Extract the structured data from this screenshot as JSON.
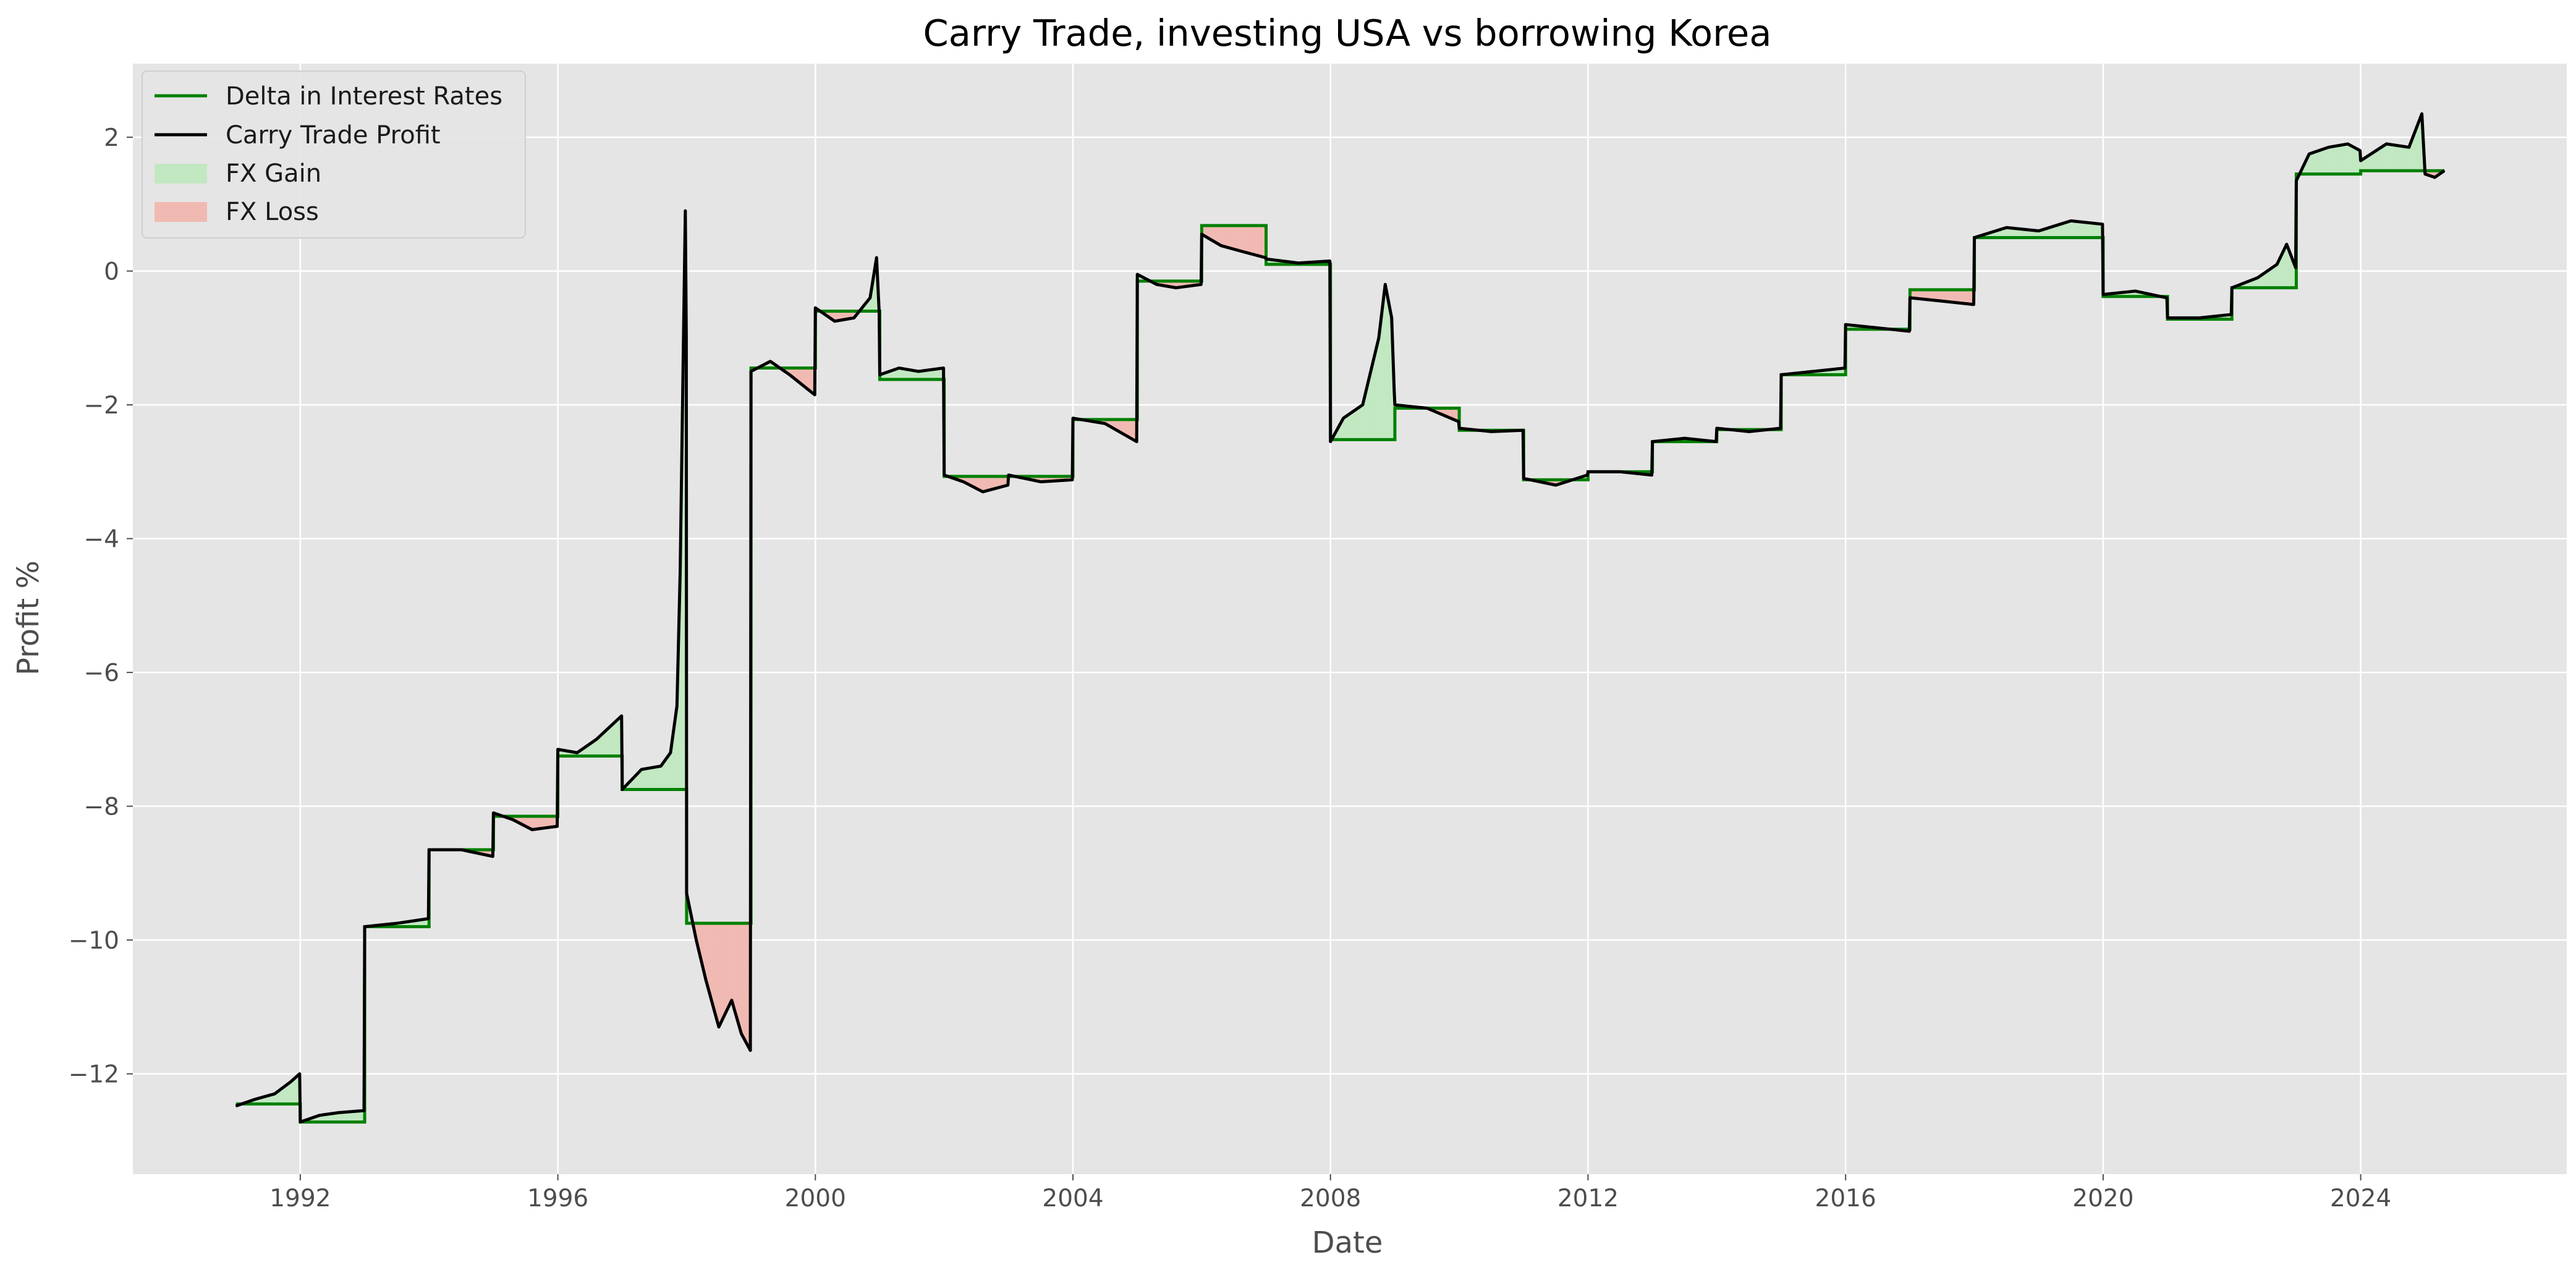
{
  "chart_data": {
    "type": "line",
    "title": "Carry Trade, investing USA vs borrowing Korea",
    "xlabel": "Date",
    "ylabel": "Profit %",
    "xlim": [
      1989.4,
      2027.2
    ],
    "ylim": [
      -13.5,
      3.1
    ],
    "x_ticks": [
      {
        "value": 1992,
        "label": "1992"
      },
      {
        "value": 1996,
        "label": "1996"
      },
      {
        "value": 2000,
        "label": "2000"
      },
      {
        "value": 2004,
        "label": "2004"
      },
      {
        "value": 2008,
        "label": "2008"
      },
      {
        "value": 2012,
        "label": "2012"
      },
      {
        "value": 2016,
        "label": "2016"
      },
      {
        "value": 2020,
        "label": "2020"
      },
      {
        "value": 2024,
        "label": "2024"
      }
    ],
    "y_ticks": [
      {
        "value": -12,
        "label": "−12"
      },
      {
        "value": -10,
        "label": "−10"
      },
      {
        "value": -8,
        "label": "−8"
      },
      {
        "value": -6,
        "label": "−6"
      },
      {
        "value": -4,
        "label": "−4"
      },
      {
        "value": -2,
        "label": "−2"
      },
      {
        "value": 0,
        "label": "0"
      },
      {
        "value": 2,
        "label": "2"
      }
    ],
    "grid": true,
    "legend_position": "upper-left",
    "colors": {
      "background": "#e5e5e5",
      "grid": "#ffffff",
      "delta": "#008000",
      "profit": "#000000",
      "gain": "#c2e8c2",
      "loss": "#f0bab2",
      "axis_text": "#4d4d4d"
    },
    "series": [
      {
        "name": "Delta in Interest Rates",
        "kind": "step",
        "steps": [
          {
            "start": 1991.0,
            "end": 1992.0,
            "value": -12.45
          },
          {
            "start": 1992.0,
            "end": 1993.0,
            "value": -12.72
          },
          {
            "start": 1993.0,
            "end": 1994.0,
            "value": -9.8
          },
          {
            "start": 1994.0,
            "end": 1995.0,
            "value": -8.65
          },
          {
            "start": 1995.0,
            "end": 1996.0,
            "value": -8.15
          },
          {
            "start": 1996.0,
            "end": 1997.0,
            "value": -7.25
          },
          {
            "start": 1997.0,
            "end": 1998.0,
            "value": -7.75
          },
          {
            "start": 1998.0,
            "end": 1999.0,
            "value": -9.75
          },
          {
            "start": 1999.0,
            "end": 2000.0,
            "value": -1.45
          },
          {
            "start": 2000.0,
            "end": 2001.0,
            "value": -0.6
          },
          {
            "start": 2001.0,
            "end": 2002.0,
            "value": -1.62
          },
          {
            "start": 2002.0,
            "end": 2004.0,
            "value": -3.07
          },
          {
            "start": 2004.0,
            "end": 2005.0,
            "value": -2.22
          },
          {
            "start": 2005.0,
            "end": 2006.0,
            "value": -0.15
          },
          {
            "start": 2006.0,
            "end": 2007.0,
            "value": 0.68
          },
          {
            "start": 2007.0,
            "end": 2008.0,
            "value": 0.1
          },
          {
            "start": 2008.0,
            "end": 2009.0,
            "value": -2.52
          },
          {
            "start": 2009.0,
            "end": 2010.0,
            "value": -2.05
          },
          {
            "start": 2010.0,
            "end": 2011.0,
            "value": -2.38
          },
          {
            "start": 2011.0,
            "end": 2012.0,
            "value": -3.12
          },
          {
            "start": 2012.0,
            "end": 2013.0,
            "value": -3.0
          },
          {
            "start": 2013.0,
            "end": 2014.0,
            "value": -2.55
          },
          {
            "start": 2014.0,
            "end": 2015.0,
            "value": -2.37
          },
          {
            "start": 2015.0,
            "end": 2016.0,
            "value": -1.55
          },
          {
            "start": 2016.0,
            "end": 2017.0,
            "value": -0.87
          },
          {
            "start": 2017.0,
            "end": 2018.0,
            "value": -0.28
          },
          {
            "start": 2018.0,
            "end": 2020.0,
            "value": 0.5
          },
          {
            "start": 2020.0,
            "end": 2021.0,
            "value": -0.38
          },
          {
            "start": 2021.0,
            "end": 2022.0,
            "value": -0.72
          },
          {
            "start": 2022.0,
            "end": 2023.0,
            "value": -0.25
          },
          {
            "start": 2023.0,
            "end": 2024.0,
            "value": 1.45
          },
          {
            "start": 2024.0,
            "end": 2025.3,
            "value": 1.5
          }
        ]
      },
      {
        "name": "Carry Trade Profit",
        "kind": "line",
        "points": [
          [
            1991.0,
            -12.48
          ],
          [
            1991.3,
            -12.38
          ],
          [
            1991.6,
            -12.3
          ],
          [
            1991.85,
            -12.12
          ],
          [
            1991.99,
            -12.0
          ],
          [
            1992.0,
            -12.72
          ],
          [
            1992.3,
            -12.62
          ],
          [
            1992.6,
            -12.58
          ],
          [
            1992.99,
            -12.55
          ],
          [
            1993.0,
            -9.8
          ],
          [
            1993.5,
            -9.75
          ],
          [
            1993.99,
            -9.68
          ],
          [
            1994.0,
            -8.65
          ],
          [
            1994.5,
            -8.65
          ],
          [
            1994.99,
            -8.75
          ],
          [
            1995.0,
            -8.1
          ],
          [
            1995.3,
            -8.2
          ],
          [
            1995.6,
            -8.35
          ],
          [
            1995.99,
            -8.3
          ],
          [
            1996.0,
            -7.15
          ],
          [
            1996.3,
            -7.2
          ],
          [
            1996.6,
            -7.0
          ],
          [
            1996.99,
            -6.65
          ],
          [
            1997.0,
            -7.75
          ],
          [
            1997.3,
            -7.45
          ],
          [
            1997.6,
            -7.4
          ],
          [
            1997.75,
            -7.2
          ],
          [
            1997.85,
            -6.5
          ],
          [
            1997.9,
            -4.5
          ],
          [
            1997.95,
            -1.1
          ],
          [
            1997.98,
            0.9
          ],
          [
            1997.995,
            -1.0
          ],
          [
            1998.0,
            -9.3
          ],
          [
            1998.15,
            -10.0
          ],
          [
            1998.3,
            -10.6
          ],
          [
            1998.5,
            -11.3
          ],
          [
            1998.7,
            -10.9
          ],
          [
            1998.85,
            -11.4
          ],
          [
            1998.99,
            -11.65
          ],
          [
            1999.0,
            -1.5
          ],
          [
            1999.3,
            -1.35
          ],
          [
            1999.6,
            -1.55
          ],
          [
            1999.99,
            -1.85
          ],
          [
            2000.0,
            -0.55
          ],
          [
            2000.3,
            -0.75
          ],
          [
            2000.6,
            -0.7
          ],
          [
            2000.85,
            -0.4
          ],
          [
            2000.95,
            0.2
          ],
          [
            2000.99,
            -0.6
          ],
          [
            2001.0,
            -1.55
          ],
          [
            2001.3,
            -1.45
          ],
          [
            2001.6,
            -1.5
          ],
          [
            2001.99,
            -1.45
          ],
          [
            2002.0,
            -3.05
          ],
          [
            2002.3,
            -3.15
          ],
          [
            2002.6,
            -3.3
          ],
          [
            2002.99,
            -3.2
          ],
          [
            2003.0,
            -3.05
          ],
          [
            2003.5,
            -3.15
          ],
          [
            2003.99,
            -3.12
          ],
          [
            2004.0,
            -2.2
          ],
          [
            2004.5,
            -2.28
          ],
          [
            2004.99,
            -2.55
          ],
          [
            2005.0,
            -0.05
          ],
          [
            2005.3,
            -0.2
          ],
          [
            2005.6,
            -0.25
          ],
          [
            2005.99,
            -0.2
          ],
          [
            2006.0,
            0.55
          ],
          [
            2006.3,
            0.38
          ],
          [
            2006.6,
            0.3
          ],
          [
            2006.99,
            0.2
          ],
          [
            2007.0,
            0.18
          ],
          [
            2007.5,
            0.12
          ],
          [
            2007.99,
            0.15
          ],
          [
            2008.0,
            -2.55
          ],
          [
            2008.2,
            -2.2
          ],
          [
            2008.5,
            -2.0
          ],
          [
            2008.75,
            -1.0
          ],
          [
            2008.85,
            -0.2
          ],
          [
            2008.95,
            -0.7
          ],
          [
            2008.99,
            -1.8
          ],
          [
            2009.0,
            -2.0
          ],
          [
            2009.5,
            -2.05
          ],
          [
            2009.99,
            -2.25
          ],
          [
            2010.0,
            -2.35
          ],
          [
            2010.5,
            -2.4
          ],
          [
            2010.99,
            -2.38
          ],
          [
            2011.0,
            -3.1
          ],
          [
            2011.5,
            -3.2
          ],
          [
            2011.99,
            -3.05
          ],
          [
            2012.0,
            -3.0
          ],
          [
            2012.5,
            -3.0
          ],
          [
            2012.99,
            -3.05
          ],
          [
            2013.0,
            -2.55
          ],
          [
            2013.5,
            -2.5
          ],
          [
            2013.99,
            -2.55
          ],
          [
            2014.0,
            -2.35
          ],
          [
            2014.5,
            -2.4
          ],
          [
            2014.99,
            -2.35
          ],
          [
            2015.0,
            -1.55
          ],
          [
            2015.5,
            -1.5
          ],
          [
            2015.99,
            -1.45
          ],
          [
            2016.0,
            -0.8
          ],
          [
            2016.5,
            -0.85
          ],
          [
            2016.99,
            -0.9
          ],
          [
            2017.0,
            -0.4
          ],
          [
            2017.5,
            -0.45
          ],
          [
            2017.99,
            -0.5
          ],
          [
            2018.0,
            0.5
          ],
          [
            2018.5,
            0.65
          ],
          [
            2019.0,
            0.6
          ],
          [
            2019.5,
            0.75
          ],
          [
            2019.99,
            0.7
          ],
          [
            2020.0,
            -0.35
          ],
          [
            2020.5,
            -0.3
          ],
          [
            2020.99,
            -0.4
          ],
          [
            2021.0,
            -0.7
          ],
          [
            2021.5,
            -0.7
          ],
          [
            2021.99,
            -0.65
          ],
          [
            2022.0,
            -0.25
          ],
          [
            2022.4,
            -0.1
          ],
          [
            2022.7,
            0.1
          ],
          [
            2022.85,
            0.4
          ],
          [
            2022.99,
            0.05
          ],
          [
            2023.0,
            1.35
          ],
          [
            2023.2,
            1.75
          ],
          [
            2023.5,
            1.85
          ],
          [
            2023.8,
            1.9
          ],
          [
            2023.99,
            1.8
          ],
          [
            2024.0,
            1.65
          ],
          [
            2024.4,
            1.9
          ],
          [
            2024.75,
            1.85
          ],
          [
            2024.95,
            2.35
          ],
          [
            2025.0,
            1.45
          ],
          [
            2025.15,
            1.4
          ],
          [
            2025.3,
            1.5
          ]
        ]
      }
    ],
    "fill_legend": [
      {
        "name": "FX Gain",
        "color_key": "gain"
      },
      {
        "name": "FX Loss",
        "color_key": "loss"
      }
    ]
  }
}
